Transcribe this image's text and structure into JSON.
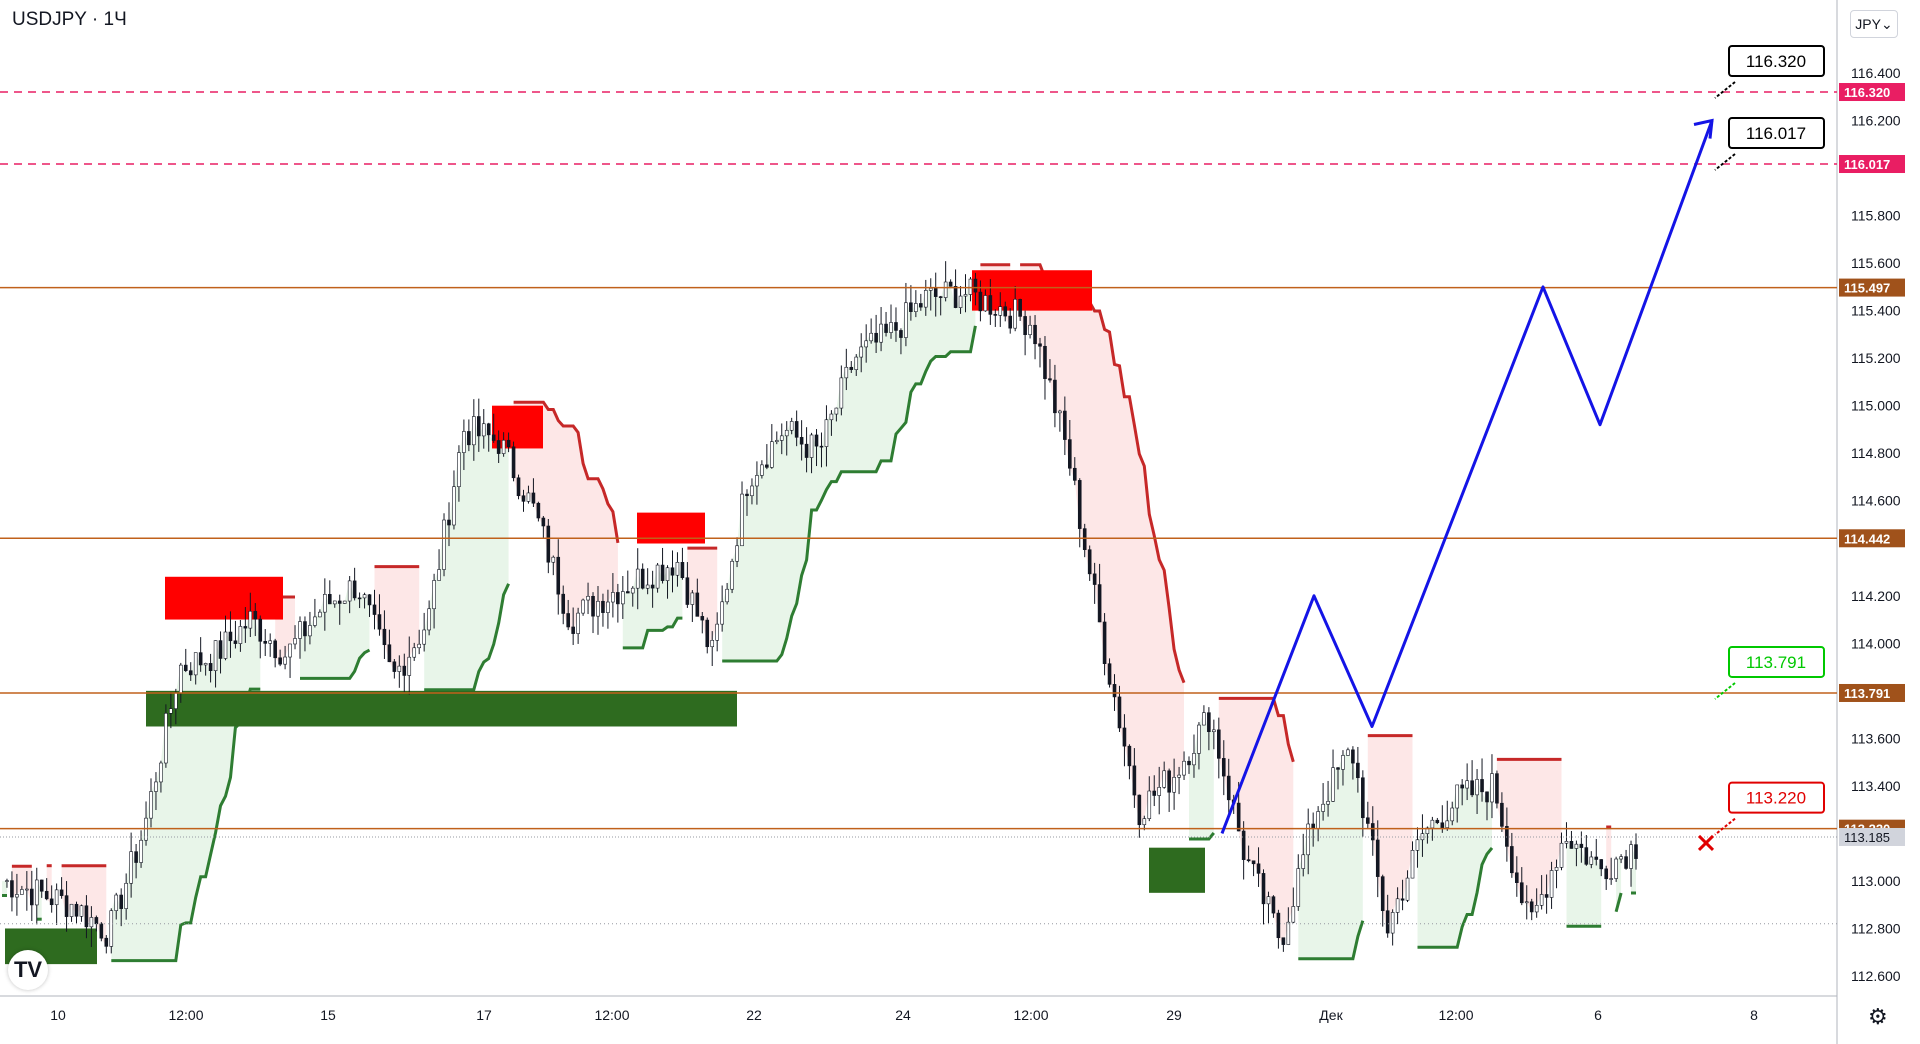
{
  "header": {
    "symbol": "USDJPY",
    "separator": "·",
    "interval": "1Ч"
  },
  "currency_button": {
    "label": "JPY",
    "icon": "chevron-down-icon"
  },
  "footer": {
    "settings_icon": "gear-icon",
    "logo": "TV"
  },
  "colors": {
    "up": "#2e7d32",
    "down": "#c62828",
    "level": "#c0611b",
    "target": "#e91e63",
    "arrow": "#1414e6",
    "zone_red": "#ff0000",
    "zone_green": "#2e6b1f",
    "cloud_green": "#e8f5e9",
    "cloud_red": "#fde7e7"
  },
  "chart_data": {
    "type": "candlestick",
    "title": "USDJPY · 1Ч",
    "symbol": "USDJPY",
    "timeframe": "1Ч",
    "currency": "JPY",
    "ylim": [
      112.5,
      116.5
    ],
    "y_ticks": [
      "116.400",
      "116.200",
      "115.800",
      "115.600",
      "115.400",
      "115.200",
      "115.000",
      "114.800",
      "114.600",
      "114.200",
      "114.000",
      "113.600",
      "113.400",
      "113.000",
      "112.800",
      "112.600"
    ],
    "x_ticks": [
      "10",
      "12:00",
      "15",
      "17",
      "12:00",
      "22",
      "24",
      "12:00",
      "29",
      "Дек",
      "12:00",
      "6",
      "8"
    ],
    "last_price": "113.185",
    "horizontal_levels": [
      {
        "value": 116.32,
        "label": "116.320",
        "style": "dashed",
        "color": "#e91e63"
      },
      {
        "value": 116.017,
        "label": "116.017",
        "style": "dashed",
        "color": "#e91e63"
      },
      {
        "value": 115.497,
        "label": "115.497",
        "style": "solid",
        "color": "#c0611b"
      },
      {
        "value": 114.442,
        "label": "114.442",
        "style": "solid",
        "color": "#c0611b"
      },
      {
        "value": 113.791,
        "label": "113.791",
        "style": "solid",
        "color": "#c0611b"
      },
      {
        "value": 113.22,
        "label": "113.220",
        "style": "solid",
        "color": "#c0611b"
      }
    ],
    "callouts": [
      {
        "value": 116.32,
        "label": "116.320",
        "color": "#000000"
      },
      {
        "value": 116.017,
        "label": "116.017",
        "color": "#000000"
      },
      {
        "value": 113.791,
        "label": "113.791",
        "color": "#00c800"
      },
      {
        "value": 113.22,
        "label": "113.220",
        "color": "#e00000"
      }
    ],
    "projection_path": [
      113.2,
      114.2,
      113.65,
      115.5,
      114.92,
      116.2
    ],
    "close_path": [
      113.0,
      112.95,
      112.9,
      112.78,
      113.22,
      113.9,
      113.95,
      114.1,
      113.95,
      114.15,
      114.25,
      113.85,
      114.1,
      114.9,
      114.85,
      114.55,
      114.1,
      114.2,
      114.28,
      114.35,
      113.95,
      114.7,
      114.9,
      114.8,
      115.2,
      115.3,
      115.45,
      115.48,
      115.42,
      115.35,
      114.8,
      114.0,
      113.3,
      113.45,
      113.7,
      113.1,
      112.75,
      113.3,
      113.55,
      112.8,
      113.2,
      113.35,
      113.4,
      112.8,
      113.2,
      113.05,
      113.15
    ],
    "zones": [
      {
        "type": "supply",
        "from": 114.1,
        "to": 114.28
      },
      {
        "type": "supply",
        "from": 114.82,
        "to": 115.0
      },
      {
        "type": "supply",
        "from": 114.42,
        "to": 114.55
      },
      {
        "type": "supply",
        "from": 115.4,
        "to": 115.57
      },
      {
        "type": "demand",
        "from": 113.65,
        "to": 113.8
      },
      {
        "type": "demand",
        "from": 112.65,
        "to": 112.8
      },
      {
        "type": "demand",
        "from": 112.95,
        "to": 113.14
      }
    ]
  }
}
